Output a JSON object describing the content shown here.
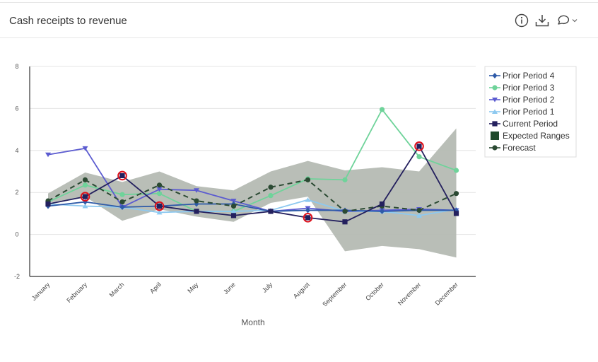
{
  "header": {
    "title": "Cash receipts to revenue",
    "info_icon": "info-icon",
    "download_icon": "download-icon",
    "comment_icon": "comment-icon",
    "dropdown_icon": "chevron-down-icon"
  },
  "colors": {
    "prior4": "#2e5aa8",
    "prior3": "#6fd39a",
    "prior2": "#5b5bd0",
    "prior1": "#8ec9f0",
    "current": "#24205e",
    "range": "#b5bab3",
    "range_legend": "#1f4a2c",
    "forecast": "#2b4a33",
    "anomaly": "#e0101a"
  },
  "chart_data": {
    "type": "line",
    "title": "Cash receipts to revenue",
    "xlabel": "Month",
    "ylabel": "",
    "ylim": [
      -2,
      8
    ],
    "yticks": [
      -2,
      0,
      2,
      4,
      6,
      8
    ],
    "grid": true,
    "legend_position": "right",
    "categories": [
      "January",
      "February",
      "March",
      "April",
      "May",
      "June",
      "July",
      "August",
      "September",
      "October",
      "November",
      "December"
    ],
    "series": [
      {
        "name": "Prior Period 4",
        "marker": "diamond",
        "color_key": "prior4",
        "values": [
          1.35,
          1.55,
          1.3,
          1.35,
          1.45,
          1.45,
          1.1,
          1.15,
          1.15,
          1.1,
          1.15,
          1.15
        ]
      },
      {
        "name": "Prior Period 3",
        "marker": "circle",
        "color_key": "prior3",
        "values": [
          1.55,
          2.35,
          1.9,
          1.95,
          1.1,
          1.1,
          1.85,
          2.65,
          2.6,
          5.95,
          3.7,
          3.05
        ]
      },
      {
        "name": "Prior Period 2",
        "marker": "triangle-down",
        "color_key": "prior2",
        "values": [
          3.8,
          4.1,
          1.3,
          2.15,
          2.1,
          1.6,
          1.1,
          1.25,
          1.1,
          1.15,
          1.2,
          1.15
        ]
      },
      {
        "name": "Prior Period 1",
        "marker": "triangle-up",
        "color_key": "prior1",
        "values": [
          1.45,
          1.35,
          1.3,
          1.05,
          1.1,
          1.1,
          1.15,
          1.65,
          1.1,
          1.1,
          0.9,
          1.2
        ]
      },
      {
        "name": "Current Period",
        "marker": "square",
        "color_key": "current",
        "values": [
          1.45,
          1.8,
          2.8,
          1.35,
          1.1,
          0.9,
          1.1,
          0.8,
          0.6,
          1.45,
          4.2,
          1.0
        ]
      },
      {
        "name": "Expected Ranges",
        "type": "band",
        "marker": "square",
        "color_key": "range",
        "lower": [
          1.5,
          1.8,
          0.65,
          1.2,
          0.85,
          0.6,
          1.5,
          1.8,
          -0.8,
          -0.55,
          -0.7,
          -1.1
        ],
        "upper": [
          1.95,
          2.95,
          2.5,
          3.0,
          2.3,
          2.1,
          3.0,
          3.5,
          3.05,
          3.2,
          3.0,
          5.05
        ]
      },
      {
        "name": "Forecast",
        "marker": "circle",
        "dashed": true,
        "color_key": "forecast",
        "values": [
          1.6,
          2.6,
          1.55,
          2.35,
          1.6,
          1.35,
          2.25,
          2.6,
          1.1,
          1.35,
          1.15,
          1.95
        ]
      }
    ],
    "anomalies": {
      "series": "Current Period",
      "months": [
        "February",
        "March",
        "April",
        "August",
        "November"
      ]
    }
  }
}
